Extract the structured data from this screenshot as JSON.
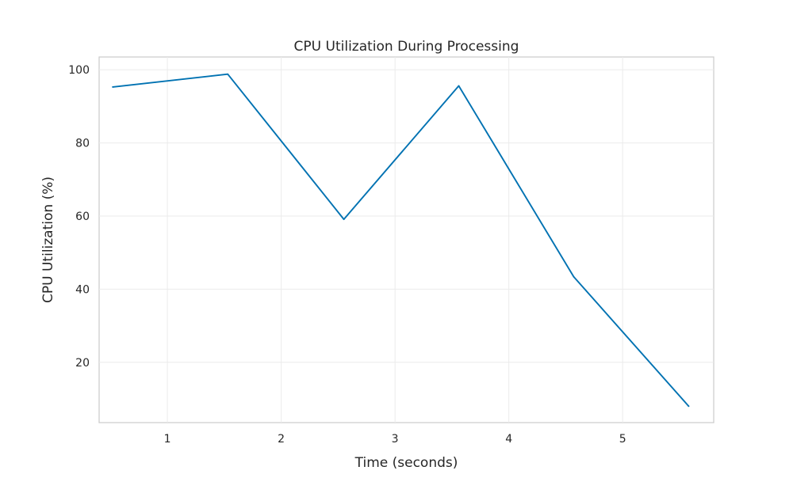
{
  "chart_data": {
    "type": "line",
    "title": "CPU Utilization During Processing",
    "xlabel": "Time (seconds)",
    "ylabel": "CPU Utilization (%)",
    "x_ticks": [
      1,
      2,
      3,
      4,
      5
    ],
    "y_ticks": [
      20,
      40,
      60,
      80,
      100
    ],
    "xlim": [
      0.4,
      5.8
    ],
    "ylim": [
      3.5,
      103.5
    ],
    "grid": true,
    "legend": "none",
    "series": [
      {
        "x": [
          0.52,
          1.53,
          2.55,
          3.56,
          4.57,
          5.58
        ],
        "y": [
          95.3,
          98.8,
          59.1,
          95.6,
          43.4,
          8.0
        ],
        "color": "#0072b2"
      }
    ]
  }
}
